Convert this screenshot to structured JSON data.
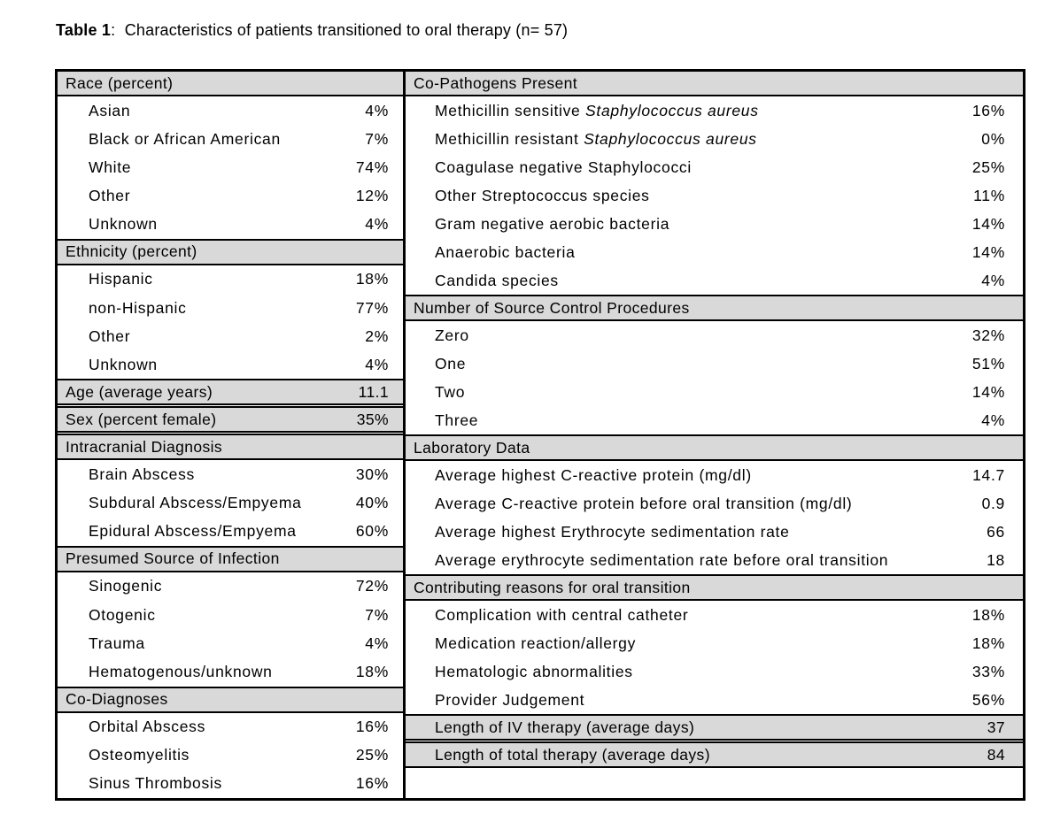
{
  "title": {
    "bold": "Table 1",
    "rest": ":  Characteristics of patients transitioned to oral therapy (n= 57)"
  },
  "colors": {
    "section_header_fill": "#d9d9d9",
    "border": "#000000",
    "background": "#ffffff"
  },
  "left": {
    "sections": [
      {
        "header": "Race (percent)",
        "rows": [
          {
            "label": "Asian",
            "value": "4%"
          },
          {
            "label": "Black or African American",
            "value": "7%"
          },
          {
            "label": "White",
            "value": "74%"
          },
          {
            "label": "Other",
            "value": "12%"
          },
          {
            "label": "Unknown",
            "value": "4%"
          }
        ]
      },
      {
        "header": "Ethnicity (percent)",
        "rows": [
          {
            "label": "Hispanic",
            "value": "18%"
          },
          {
            "label": "non-Hispanic",
            "value": "77%"
          },
          {
            "label": "Other",
            "value": "2%"
          },
          {
            "label": "Unknown",
            "value": "4%"
          }
        ]
      },
      {
        "header": "Age (average years)",
        "value": "11.1",
        "rows": []
      },
      {
        "header": "Sex (percent female)",
        "value": "35%",
        "rows": []
      },
      {
        "header": "Intracranial Diagnosis",
        "rows": [
          {
            "label": "Brain Abscess",
            "value": "30%"
          },
          {
            "label": "Subdural Abscess/Empyema",
            "value": "40%"
          },
          {
            "label": "Epidural Abscess/Empyema",
            "value": "60%"
          }
        ]
      },
      {
        "header": "Presumed Source of Infection",
        "rows": [
          {
            "label": "Sinogenic",
            "value": "72%"
          },
          {
            "label": "Otogenic",
            "value": "7%"
          },
          {
            "label": "Trauma",
            "value": "4%"
          },
          {
            "label": "Hematogenous/unknown",
            "value": "18%"
          }
        ]
      },
      {
        "header": "Co-Diagnoses",
        "rows": [
          {
            "label": "Orbital Abscess",
            "value": "16%"
          },
          {
            "label": "Osteomyelitis",
            "value": "25%"
          },
          {
            "label": "Sinus Thrombosis",
            "value": "16%"
          }
        ]
      }
    ]
  },
  "right": {
    "sections": [
      {
        "header": "Co-Pathogens Present",
        "rows": [
          {
            "label": "Methicillin sensitive ",
            "label_italic": "Staphylococcus aureus",
            "value": "16%"
          },
          {
            "label": "Methicillin resistant ",
            "label_italic": "Staphylococcus aureus",
            "value": "0%"
          },
          {
            "label": "Coagulase negative Staphylococci",
            "value": "25%"
          },
          {
            "label": "Other Streptococcus species",
            "value": "11%"
          },
          {
            "label": "Gram negative aerobic bacteria",
            "value": "14%"
          },
          {
            "label": "Anaerobic bacteria",
            "value": "14%"
          },
          {
            "label": "Candida species",
            "value": "4%"
          }
        ]
      },
      {
        "header": "Number of Source Control Procedures",
        "rows": [
          {
            "label": "Zero",
            "value": "32%"
          },
          {
            "label": "One",
            "value": "51%"
          },
          {
            "label": "Two",
            "value": "14%"
          },
          {
            "label": "Three",
            "value": "4%"
          }
        ]
      },
      {
        "header": "Laboratory Data",
        "rows": [
          {
            "label": "Average highest C-reactive protein (mg/dl)",
            "value": "14.7"
          },
          {
            "label": "Average C-reactive protein before oral transition (mg/dl)",
            "value": "0.9"
          },
          {
            "label": "Average highest Erythrocyte sedimentation rate",
            "value": "66"
          },
          {
            "label": "Average erythrocyte sedimentation rate before oral transition",
            "value": "18"
          }
        ]
      },
      {
        "header": "Contributing reasons for oral transition",
        "rows": [
          {
            "label": "Complication with central catheter",
            "value": "18%"
          },
          {
            "label": "Medication reaction/allergy",
            "value": "18%"
          },
          {
            "label": "Hematologic abnormalities",
            "value": "33%"
          },
          {
            "label": "Provider Judgement",
            "value": "56%"
          }
        ]
      },
      {
        "header": "Length of IV therapy (average days)",
        "value": "37",
        "rows": []
      },
      {
        "header": "Length of total therapy (average days)",
        "value": "84",
        "rows": []
      }
    ]
  }
}
